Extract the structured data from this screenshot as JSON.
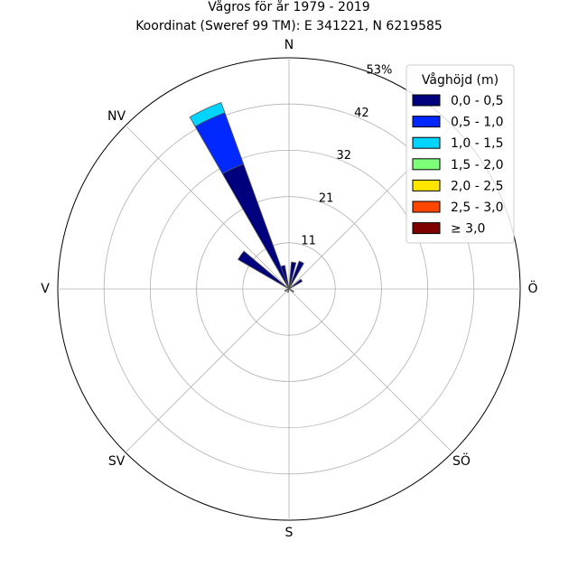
{
  "chart_data": {
    "type": "windrose",
    "title": "Vågros för år 1979 - 2019",
    "subtitle": "Koordinat (Sweref 99 TM): E 341221, N 6219585",
    "directions": [
      "N",
      "NV",
      "V",
      "SV",
      "S",
      "SÖ",
      "Ö"
    ],
    "direction_angles_deg": {
      "N": 0,
      "NV": 315,
      "V": 270,
      "SV": 225,
      "S": 180,
      "SÖ": 135,
      "Ö": 90
    },
    "radial_ticks": [
      "11",
      "21",
      "32",
      "42",
      "53%"
    ],
    "radial_tick_values": [
      10.6,
      21.2,
      31.8,
      42.4,
      53
    ],
    "rmax": 53,
    "legend": {
      "title": "Våghöjd (m)",
      "entries": [
        {
          "label": "0,0 - 0,5",
          "color": "#00007f"
        },
        {
          "label": "0,5 - 1,0",
          "color": "#0028ff"
        },
        {
          "label": "1,0 - 1,5",
          "color": "#00d4ff"
        },
        {
          "label": "1,5 - 2,0",
          "color": "#7dff7a"
        },
        {
          "label": "2,0 - 2,5",
          "color": "#ffe600"
        },
        {
          "label": "2,5 - 3,0",
          "color": "#ff4600"
        },
        {
          "label": "≥ 3,0",
          "color": "#7f0000"
        }
      ]
    },
    "sector_width_deg": 10,
    "sectors": [
      {
        "direction_deg": 335,
        "values": [
          30.5,
          12.5,
          2.5,
          0,
          0,
          0,
          0
        ]
      },
      {
        "direction_deg": 305,
        "values": [
          13.5,
          0,
          0,
          0,
          0,
          0,
          0
        ]
      },
      {
        "direction_deg": 335,
        "values": [
          0,
          0,
          0,
          0,
          0,
          0,
          0
        ]
      },
      {
        "direction_deg": 10,
        "values": [
          6.2,
          0,
          0,
          0,
          0,
          0,
          0
        ]
      },
      {
        "direction_deg": 25,
        "values": [
          6.8,
          0,
          0,
          0,
          0,
          0,
          0
        ]
      },
      {
        "direction_deg": 55,
        "values": [
          3.5,
          0,
          0,
          0,
          0,
          0,
          0
        ]
      },
      {
        "direction_deg": 345,
        "values": [
          5.5,
          0,
          0,
          0,
          0,
          0,
          0
        ]
      },
      {
        "direction_deg": 120,
        "values": [
          1.2,
          0,
          0,
          0,
          0,
          0,
          0
        ]
      },
      {
        "direction_deg": 200,
        "values": [
          0.8,
          0,
          0,
          0,
          0,
          0,
          0
        ]
      },
      {
        "direction_deg": 245,
        "values": [
          1.0,
          0,
          0,
          0,
          0,
          0,
          0
        ]
      }
    ]
  }
}
